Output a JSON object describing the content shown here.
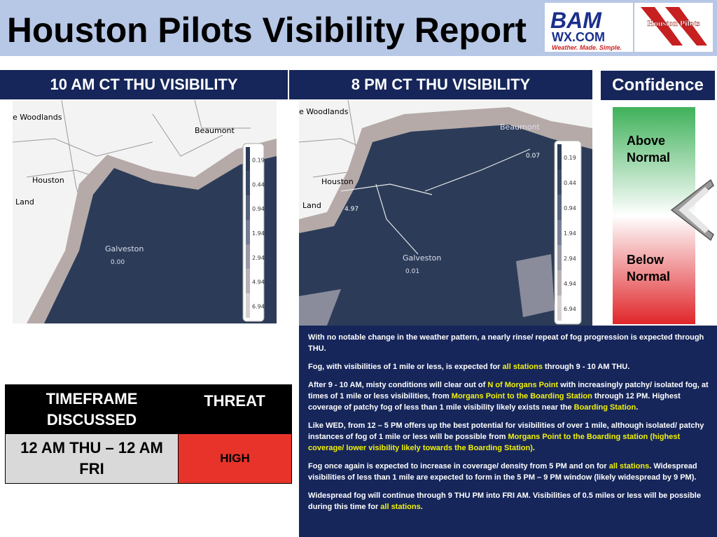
{
  "header": {
    "title": "Houston Pilots Visibility Report",
    "logo_bam": "BAM",
    "logo_wx": "WX.COM",
    "logo_tagline": "Weather. Made. Simple.",
    "logo_pilots": "Houston Pilots"
  },
  "maps": [
    {
      "title": "10 AM CT THU VISIBILITY",
      "labels": [
        "e Woodlands",
        "Beaumont",
        "Houston",
        "Land",
        "Galveston",
        "0.00"
      ],
      "legend": [
        "0.19",
        "0.44",
        "0.94",
        "1.94",
        "2.94",
        "4.94",
        "6.94"
      ]
    },
    {
      "title": "8 PM CT THU VISIBILITY",
      "labels": [
        "e Woodlands",
        "Beaumont",
        "Houston",
        "Land",
        "4.97",
        "Galveston",
        "0.01",
        "0.07"
      ],
      "legend": [
        "0.19",
        "0.44",
        "0.94",
        "1.94",
        "2.94",
        "4.94",
        "6.94"
      ]
    }
  ],
  "confidence": {
    "title": "Confidence",
    "above": "Above Normal",
    "below": "Below Normal"
  },
  "table": {
    "header": [
      "TIMEFRAME DISCUSSED",
      "THREAT"
    ],
    "rows": [
      [
        "12 AM THU – 12 AM FRI",
        "HIGH"
      ]
    ]
  },
  "discussion": {
    "highlight_color": "#f2f20a",
    "paragraphs": [
      [
        {
          "text": "With no notable change in the weather pattern, a nearly rinse/ repeat of fog progression is expected through THU."
        }
      ],
      [
        {
          "text": "Fog, with visibilities of 1 mile or less, is expected for "
        },
        {
          "text": "all stations",
          "highlight": true
        },
        {
          "text": " through 9 - 10 AM THU."
        }
      ],
      [
        {
          "text": "After 9 - 10 AM, misty conditions will clear out of "
        },
        {
          "text": "N of Morgans Point",
          "highlight": true
        },
        {
          "text": " with increasingly patchy/ isolated fog, at times of 1 mile or less visibilities, from "
        },
        {
          "text": "Morgans Point to the Boarding Station",
          "highlight": true
        },
        {
          "text": " through 12 PM. Highest coverage of patchy fog of less than 1 mile visibility likely exists near the "
        },
        {
          "text": "Boarding Station",
          "highlight": true
        },
        {
          "text": "."
        }
      ],
      [
        {
          "text": "Like WED, from 12 – 5 PM offers up the best potential for visibilities of over 1 mile, although isolated/ patchy instances of fog of 1 mile or less will be possible from "
        },
        {
          "text": "Morgans Point to the Boarding station (highest coverage/ lower visibility likely towards the Boarding Station)",
          "highlight": true
        },
        {
          "text": "."
        }
      ],
      [
        {
          "text": "Fog once again is expected to increase in coverage/ density from 5 PM and on for "
        },
        {
          "text": "all stations",
          "highlight": true
        },
        {
          "text": ". Widespread visibilities of less than 1 mile are expected to form in the 5 PM – 9 PM window (likely widespread by 9 PM)."
        }
      ],
      [
        {
          "text": "Widespread fog will continue through 9 THU PM into FRI AM.  Visibilities of 0.5 miles or less will be possible during this time for "
        },
        {
          "text": "all stations",
          "highlight": true
        },
        {
          "text": "."
        }
      ]
    ]
  }
}
